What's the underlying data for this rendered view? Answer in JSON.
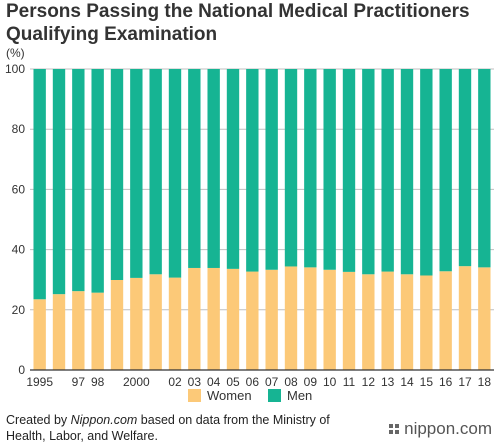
{
  "header": {
    "title": "Persons Passing the National Medical Practitioners Qualifying Examination",
    "unit": "(%)"
  },
  "footer": {
    "source_prefix": "Created by ",
    "source_site": "Nippon.com",
    "source_rest": " based on data from the Ministry of Health, Labor, and Welfare.",
    "brand": "nippon.com"
  },
  "colors": {
    "women": "#fcc978",
    "men": "#16b493",
    "grid": "#bfbfbf",
    "axis": "#333333"
  },
  "chart_data": {
    "type": "bar",
    "stacked": true,
    "categories": [
      "1995",
      "1996",
      "1997",
      "1998",
      "1999",
      "2000",
      "2001",
      "2002",
      "2003",
      "2004",
      "2005",
      "2006",
      "2007",
      "2008",
      "2009",
      "2010",
      "2011",
      "2012",
      "2013",
      "2014",
      "2015",
      "2016",
      "2017",
      "2018"
    ],
    "tick_labels": [
      "1995",
      "",
      "97",
      "98",
      "",
      "2000",
      "",
      "02",
      "03",
      "04",
      "05",
      "06",
      "07",
      "08",
      "09",
      "10",
      "11",
      "12",
      "13",
      "14",
      "15",
      "16",
      "17",
      "18"
    ],
    "series": [
      {
        "name": "Women",
        "values": [
          23.5,
          25.2,
          26.2,
          25.7,
          29.9,
          30.6,
          31.8,
          30.7,
          33.9,
          33.9,
          33.6,
          32.7,
          33.3,
          34.4,
          34.1,
          33.3,
          32.6,
          31.8,
          32.7,
          31.8,
          31.4,
          32.8,
          34.5,
          34.1
        ]
      },
      {
        "name": "Men",
        "values": [
          76.5,
          74.8,
          73.8,
          74.3,
          70.1,
          69.4,
          68.2,
          69.3,
          66.1,
          66.1,
          66.4,
          67.3,
          66.7,
          65.6,
          65.9,
          66.7,
          67.4,
          68.2,
          67.3,
          68.2,
          68.6,
          67.2,
          65.5,
          65.9
        ]
      }
    ],
    "ylim": [
      0,
      100
    ],
    "yticks": [
      0,
      20,
      40,
      60,
      80,
      100
    ],
    "grid": true,
    "legend_position": "bottom"
  }
}
